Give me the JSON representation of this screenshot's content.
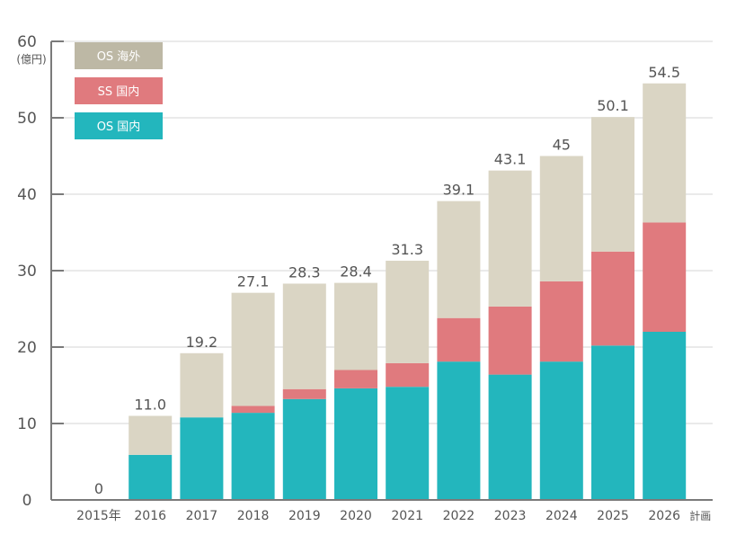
{
  "chart_data": {
    "type": "bar",
    "stacked": true,
    "title": "",
    "xlabel": "",
    "ylabel": "",
    "y_unit_label": "(億円)",
    "ylim": [
      0,
      60
    ],
    "yticks": [
      0,
      10,
      20,
      30,
      40,
      50,
      60
    ],
    "grid": true,
    "legend_position": "top-left",
    "categories": [
      "2015年",
      "2016",
      "2017",
      "2018",
      "2019",
      "2020",
      "2021",
      "2022",
      "2023",
      "2024",
      "2025",
      "2026"
    ],
    "category_suffix_last": "計画",
    "series": [
      {
        "name": "OS 国内",
        "color": "#23b6bd",
        "values": [
          0,
          5.9,
          10.8,
          11.4,
          13.2,
          14.6,
          14.8,
          18.1,
          16.4,
          18.1,
          20.2,
          22.0
        ]
      },
      {
        "name": "SS 国内",
        "color": "#e07a7e",
        "values": [
          0,
          0,
          0,
          0.9,
          1.3,
          2.4,
          3.1,
          5.7,
          8.9,
          10.5,
          12.3,
          14.3
        ]
      },
      {
        "name": "OS 海外",
        "color": "#dad5c4",
        "values": [
          0,
          5.1,
          8.4,
          14.8,
          13.8,
          11.4,
          13.4,
          15.3,
          17.8,
          16.4,
          17.6,
          18.2
        ]
      }
    ],
    "totals": [
      0,
      11.0,
      19.2,
      27.1,
      28.3,
      28.4,
      31.3,
      39.1,
      43.1,
      45,
      50.1,
      54.5
    ],
    "total_labels": [
      "0",
      "11.0",
      "19.2",
      "27.1",
      "28.3",
      "28.4",
      "31.3",
      "39.1",
      "43.1",
      "45",
      "50.1",
      "54.5"
    ],
    "legend": [
      {
        "label": "OS 海外",
        "color": "#bdb8a5"
      },
      {
        "label": "SS 国内",
        "color": "#e07a7e"
      },
      {
        "label": "OS 国内",
        "color": "#23b6bd"
      }
    ]
  }
}
